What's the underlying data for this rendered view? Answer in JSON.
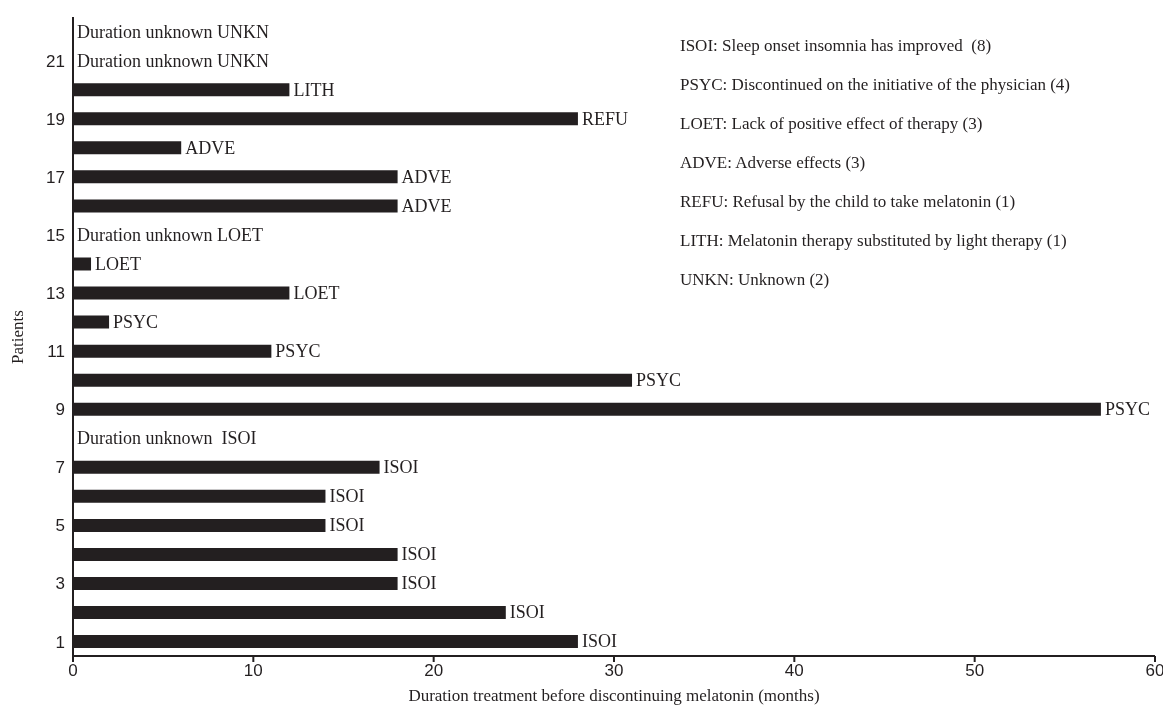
{
  "chart_data": {
    "type": "bar",
    "orientation": "horizontal",
    "xlabel": "Duration treatment before discontinuing melatonin (months)",
    "ylabel": "Patients",
    "categories": [
      null,
      "21",
      null,
      "19",
      null,
      "17",
      null,
      "15",
      null,
      "13",
      null,
      "11",
      null,
      "9",
      null,
      "7",
      null,
      "5",
      null,
      "3",
      null,
      "1"
    ],
    "values": [
      null,
      null,
      12,
      28,
      6,
      18,
      18,
      null,
      1,
      12,
      2,
      11,
      31,
      57,
      null,
      17,
      14,
      14,
      18,
      18,
      24,
      28
    ],
    "value_labels": [
      "Duration unknown UNKN",
      "Duration unknown UNKN",
      "LITH",
      "REFU",
      "ADVE",
      "ADVE",
      "ADVE",
      "Duration unknown LOET",
      "LOET",
      "LOET",
      "PSYC",
      "PSYC",
      "PSYC",
      "PSYC",
      "Duration unknown  ISOI",
      "ISOI",
      "ISOI",
      "ISOI",
      "ISOI",
      "ISOI",
      "ISOI",
      "ISOI"
    ],
    "color": "#231f20",
    "xlim": [
      0,
      60
    ],
    "xticks": [
      0,
      10,
      20,
      30,
      40,
      50,
      60
    ],
    "grid": false,
    "legend": false,
    "annotations": [
      "ISOI: Sleep onset insomnia has improved  (8)",
      "PSYC: Discontinued on the initiative of the physician (4)",
      "LOET: Lack of positive effect of therapy (3)",
      "ADVE: Adverse effects (3)",
      "REFU: Refusal by the child to take melatonin (1)",
      "LITH: Melatonin therapy substituted by light therapy (1)",
      "UNKN: Unknown (2)"
    ]
  }
}
